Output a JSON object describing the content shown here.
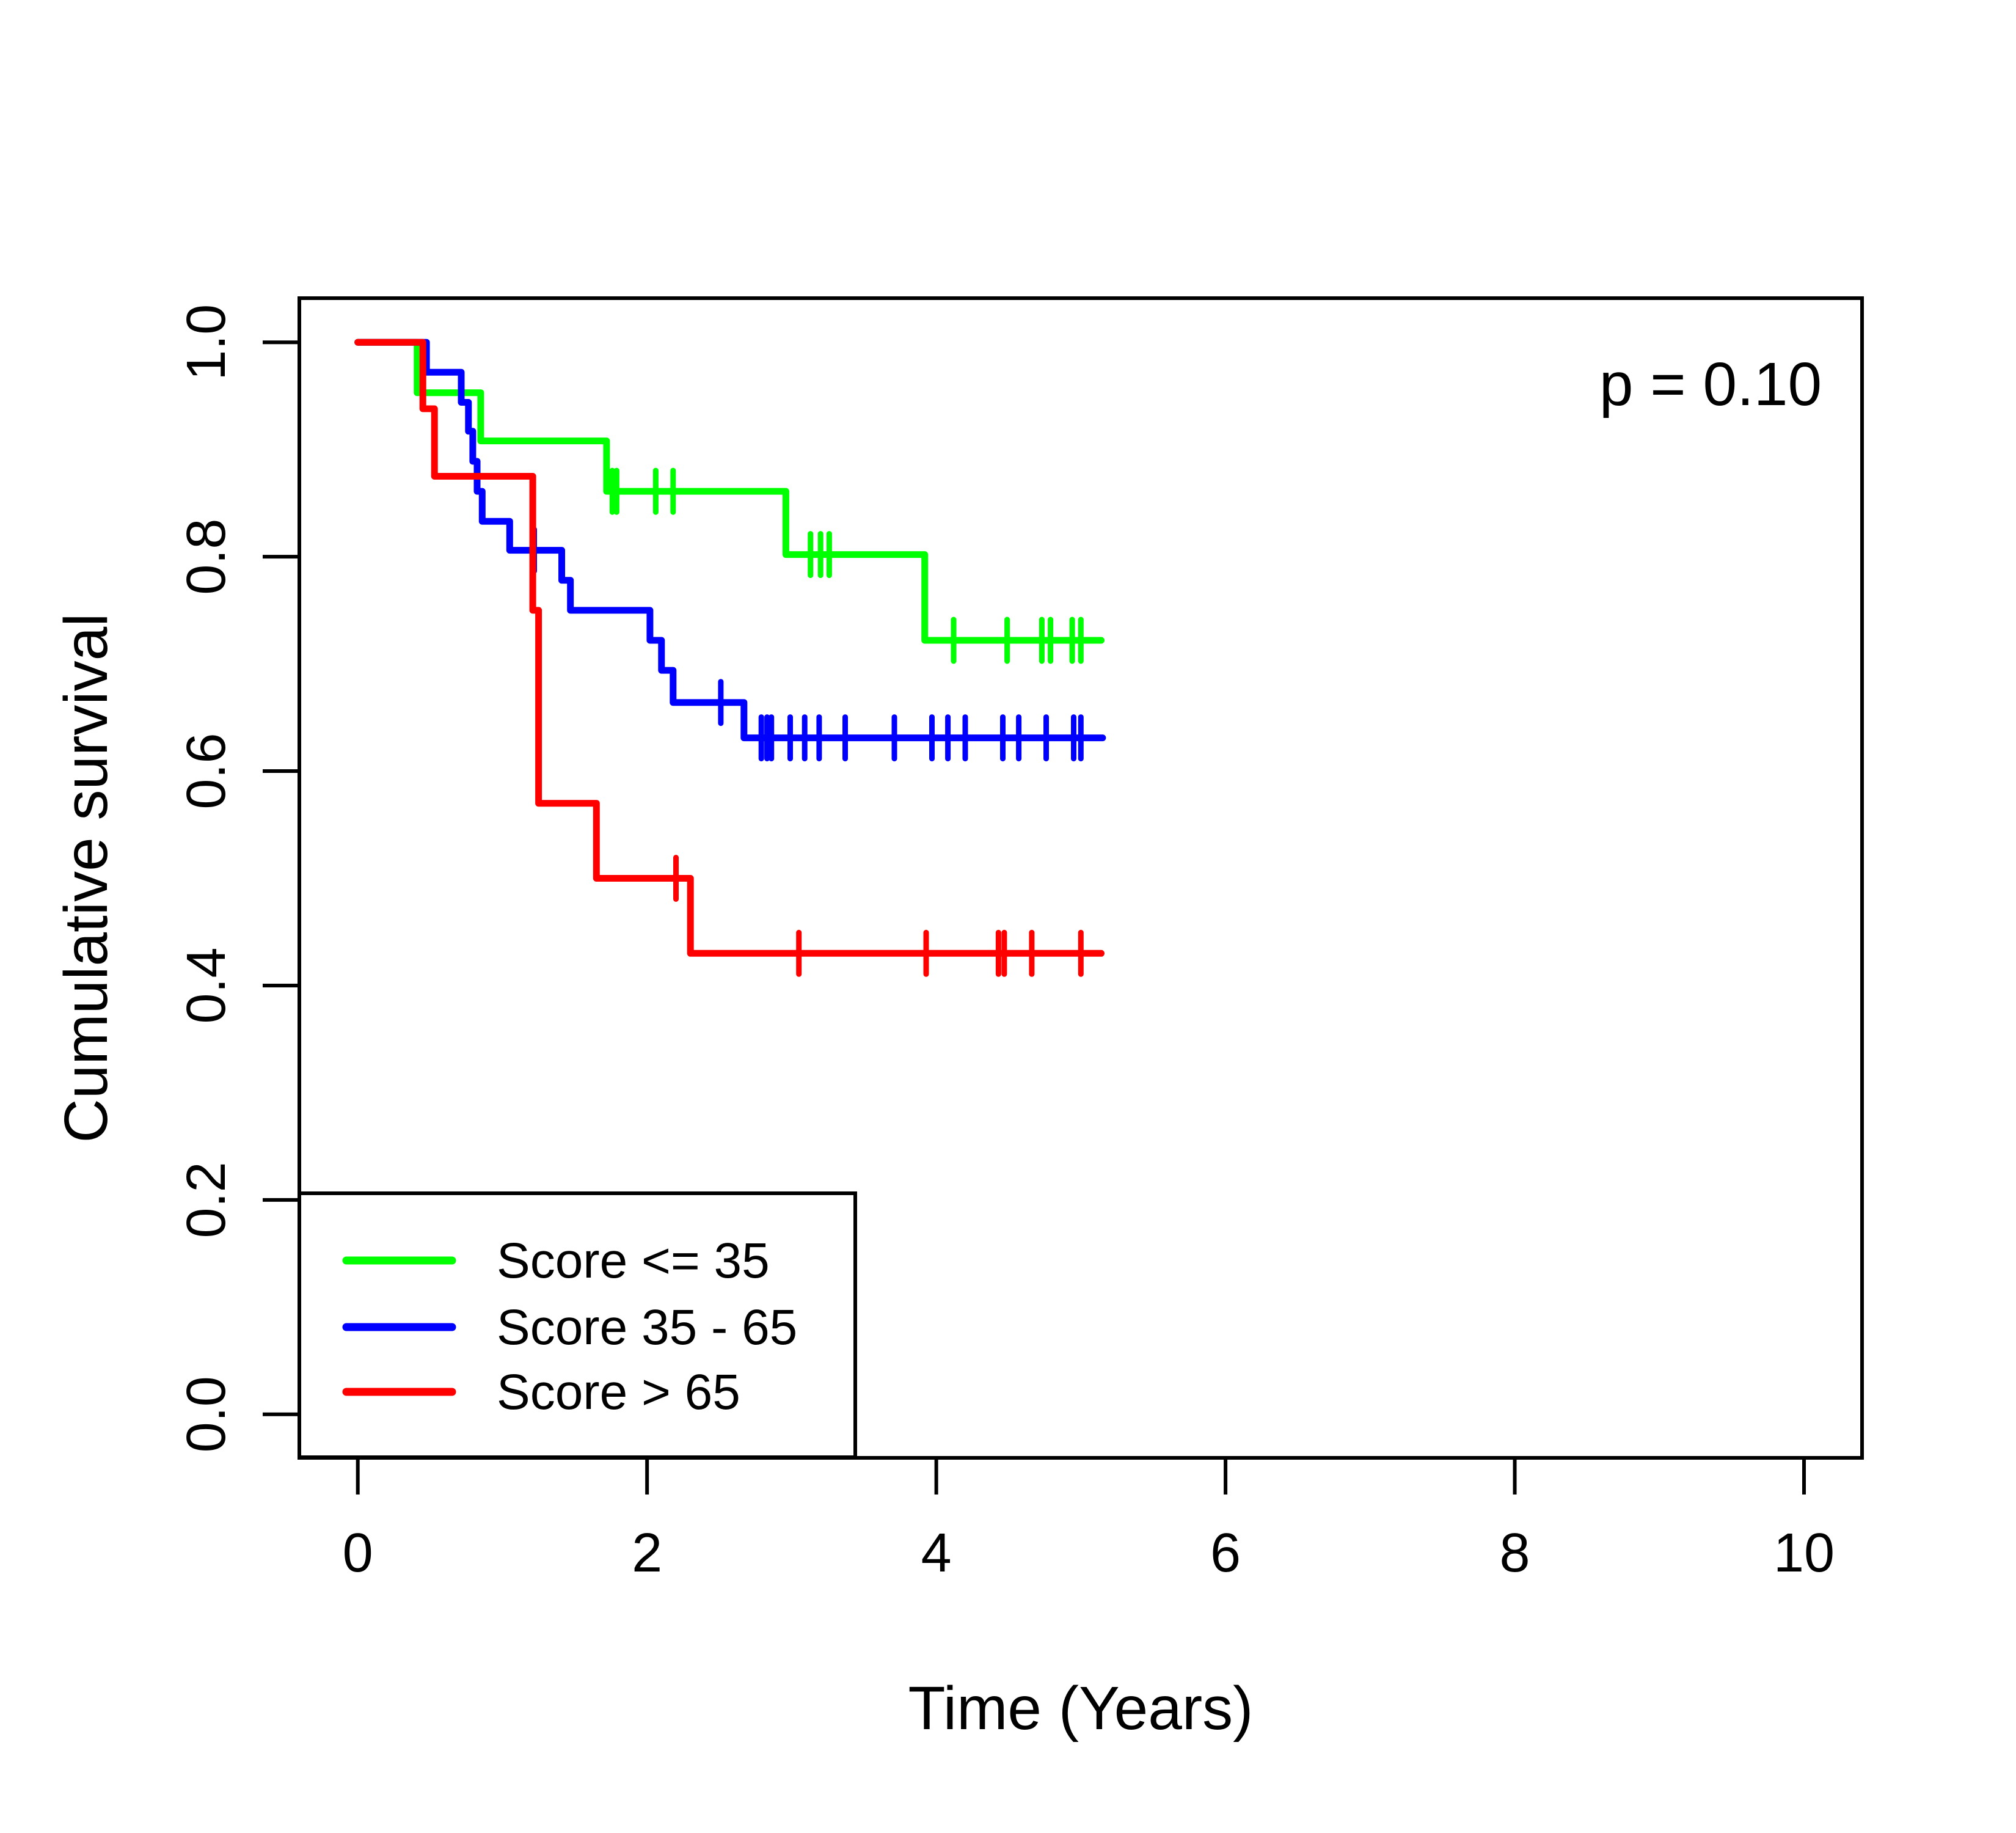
{
  "chart_data": {
    "type": "line",
    "subtype": "kaplan_meier_step_curves",
    "title": "",
    "p_value_label": "p = 0.10",
    "xlabel": "Time (Years)",
    "ylabel": "Cumulative survival",
    "xlim": [
      0,
      10
    ],
    "ylim": [
      0.0,
      1.0
    ],
    "x_ticks": [
      "0",
      "2",
      "4",
      "6",
      "8",
      "10"
    ],
    "y_ticks": [
      "0.0",
      "0.2",
      "0.4",
      "0.6",
      "0.8",
      "1.0"
    ],
    "grid": false,
    "legend_position": "bottom-left",
    "axis_color": "#000000",
    "background_color": "#ffffff",
    "legend": [
      {
        "label": "Score <= 35",
        "color": "#00ff00"
      },
      {
        "label": "Score 35 - 65",
        "color": "#0000ff"
      },
      {
        "label": "Score > 65",
        "color": "#ff0000"
      }
    ],
    "series": [
      {
        "name": "Score <= 35",
        "color": "#00ff00",
        "steps": [
          [
            0,
            1.0
          ],
          [
            0.41,
            0.953
          ],
          [
            0.85,
            0.908
          ],
          [
            1.72,
            0.861
          ],
          [
            2.96,
            0.802
          ],
          [
            3.92,
            0.722
          ],
          [
            5.14,
            0.722
          ]
        ],
        "censors": [
          [
            1.76,
            0.861
          ],
          [
            1.79,
            0.861
          ],
          [
            2.06,
            0.861
          ],
          [
            2.18,
            0.861
          ],
          [
            3.13,
            0.802
          ],
          [
            3.2,
            0.802
          ],
          [
            3.26,
            0.802
          ],
          [
            4.12,
            0.722
          ],
          [
            4.49,
            0.722
          ],
          [
            4.73,
            0.722
          ],
          [
            4.79,
            0.722
          ],
          [
            4.94,
            0.722
          ],
          [
            5.0,
            0.722
          ]
        ]
      },
      {
        "name": "Score 35 - 65",
        "color": "#0000ff",
        "steps": [
          [
            0,
            1.0
          ],
          [
            0.475,
            0.972
          ],
          [
            0.715,
            0.944
          ],
          [
            0.765,
            0.917
          ],
          [
            0.795,
            0.889
          ],
          [
            0.825,
            0.861
          ],
          [
            0.86,
            0.833
          ],
          [
            1.05,
            0.806
          ],
          [
            1.41,
            0.778
          ],
          [
            1.47,
            0.75
          ],
          [
            2.02,
            0.722
          ],
          [
            2.1,
            0.694
          ],
          [
            2.18,
            0.664
          ],
          [
            2.67,
            0.631
          ],
          [
            5.15,
            0.631
          ]
        ],
        "censors": [
          [
            1.22,
            0.806
          ],
          [
            2.51,
            0.664
          ],
          [
            2.79,
            0.631
          ],
          [
            2.83,
            0.631
          ],
          [
            2.86,
            0.631
          ],
          [
            2.99,
            0.631
          ],
          [
            3.09,
            0.631
          ],
          [
            3.19,
            0.631
          ],
          [
            3.37,
            0.631
          ],
          [
            3.71,
            0.631
          ],
          [
            3.97,
            0.631
          ],
          [
            4.08,
            0.631
          ],
          [
            4.2,
            0.631
          ],
          [
            4.46,
            0.631
          ],
          [
            4.57,
            0.631
          ],
          [
            4.76,
            0.631
          ],
          [
            4.95,
            0.631
          ],
          [
            5.0,
            0.631
          ]
        ]
      },
      {
        "name": "Score > 65",
        "color": "#ff0000",
        "steps": [
          [
            0,
            1.0
          ],
          [
            0.45,
            0.938
          ],
          [
            0.53,
            0.875
          ],
          [
            1.21,
            0.75
          ],
          [
            1.25,
            0.57
          ],
          [
            1.65,
            0.5
          ],
          [
            2.3,
            0.43
          ],
          [
            5.14,
            0.43
          ]
        ],
        "censors": [
          [
            2.2,
            0.5
          ],
          [
            3.05,
            0.43
          ],
          [
            3.93,
            0.43
          ],
          [
            4.43,
            0.43
          ],
          [
            4.47,
            0.43
          ],
          [
            4.66,
            0.43
          ],
          [
            5.0,
            0.43
          ]
        ]
      }
    ]
  }
}
